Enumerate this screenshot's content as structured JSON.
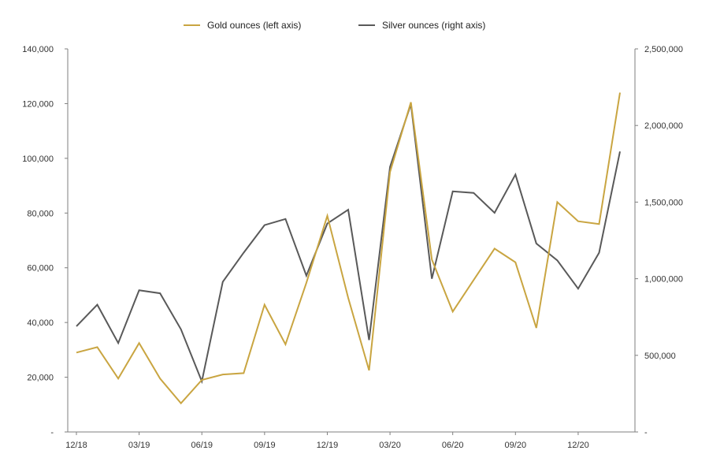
{
  "chart_data": {
    "type": "line",
    "categories": [
      "Dec-18",
      "Jan-19",
      "Feb-19",
      "Mar-19",
      "Apr-19",
      "May-19",
      "Jun-19",
      "Jul-19",
      "Aug-19",
      "Sep-19",
      "Oct-19",
      "Nov-19",
      "Dec-19",
      "Jan-20",
      "Feb-20",
      "Mar-20",
      "Apr-20",
      "May-20",
      "Jun-20",
      "Jul-20",
      "Aug-20",
      "Sep-20",
      "Oct-20",
      "Nov-20",
      "Dec-20",
      "Jan-21",
      "Feb-21"
    ],
    "x_tick_labels": [
      "12/18",
      "03/19",
      "06/19",
      "09/19",
      "12/19",
      "03/20",
      "06/20",
      "09/20",
      "12/20"
    ],
    "x_tick_category_index": [
      0,
      3,
      6,
      9,
      12,
      15,
      18,
      21,
      24
    ],
    "series": [
      {
        "name": "Gold ounces (left axis)",
        "axis": "left",
        "color": "#c9a541",
        "values": [
          29000,
          31000,
          19500,
          32500,
          19500,
          10500,
          19000,
          21000,
          21500,
          46500,
          32000,
          54500,
          79000,
          49000,
          22500,
          95000,
          120500,
          63000,
          44000,
          55500,
          67000,
          62000,
          38000,
          84000,
          77000,
          76000,
          124000
        ]
      },
      {
        "name": "Silver ounces (right axis)",
        "axis": "right",
        "color": "#595959",
        "values": [
          690000,
          830000,
          580000,
          925000,
          905000,
          670000,
          330000,
          980000,
          1170000,
          1350000,
          1390000,
          1020000,
          1360000,
          1450000,
          600000,
          1730000,
          2140000,
          1000000,
          1570000,
          1560000,
          1430000,
          1680000,
          1230000,
          1120000,
          935000,
          1170000,
          1830000
        ]
      }
    ],
    "y_left": {
      "min": 0,
      "max": 140000,
      "ticks": [
        0,
        20000,
        40000,
        60000,
        80000,
        100000,
        120000,
        140000
      ],
      "tick_labels": [
        "-",
        "20,000",
        "40,000",
        "60,000",
        "80,000",
        "100,000",
        "120,000",
        "140,000"
      ]
    },
    "y_right": {
      "min": 0,
      "max": 2500000,
      "ticks": [
        0,
        500000,
        1000000,
        1500000,
        2000000,
        2500000
      ],
      "tick_labels": [
        "-",
        "500,000",
        "1,000,000",
        "1,500,000",
        "2,000,000",
        "2,500,000"
      ]
    },
    "legend_position": "top-center",
    "grid": false
  }
}
